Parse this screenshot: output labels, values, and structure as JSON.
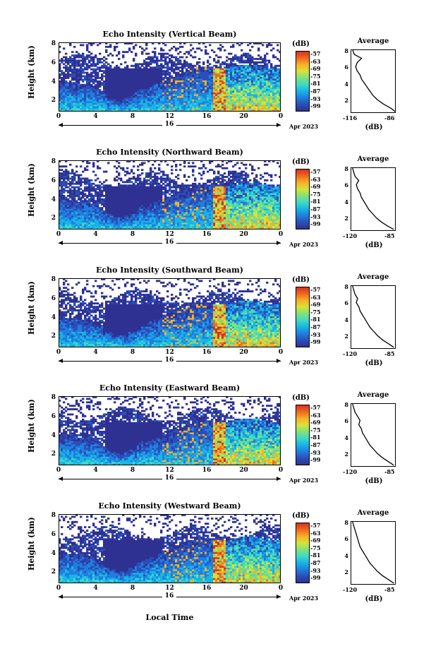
{
  "colorbar": {
    "unit": "(dB)",
    "ticks": [
      "-57",
      "-63",
      "-69",
      "-75",
      "-81",
      "-87",
      "-93",
      "-99"
    ],
    "colors": [
      "#2e3192",
      "#2b4fb8",
      "#1f7fe0",
      "#18b4e6",
      "#3fd9c6",
      "#7fe27a",
      "#d6e33a",
      "#f7b126",
      "#f16a1f",
      "#d7301f"
    ]
  },
  "shared": {
    "x_ticks": [
      "0",
      "4",
      "8",
      "12",
      "16",
      "20",
      "0"
    ],
    "y_ticks": [
      "2",
      "4",
      "6",
      "8"
    ],
    "day_label": "16",
    "date_label": "Apr 2023",
    "xlabel": "Local Time",
    "ylabel": "Height (km)",
    "avg_title": "Average",
    "avg_unit": "(dB)",
    "avg_y_ticks": [
      "2",
      "4",
      "6",
      "8"
    ]
  },
  "panels": [
    {
      "title": "Echo Intensity (Vertical Beam)",
      "avg_xmin": "-116",
      "avg_xmax": "-86"
    },
    {
      "title": "Echo Intensity (Northward Beam)",
      "avg_xmin": "-120",
      "avg_xmax": "-85"
    },
    {
      "title": "Echo Intensity (Southward Beam)",
      "avg_xmin": "-120",
      "avg_xmax": "-85"
    },
    {
      "title": "Echo Intensity (Eastward Beam)",
      "avg_xmin": "-120",
      "avg_xmax": "-85"
    },
    {
      "title": "Echo Intensity (Westward Beam)",
      "avg_xmin": "-120",
      "avg_xmax": "-85"
    }
  ],
  "chart_data": [
    {
      "type": "heatmap",
      "title": "Echo Intensity (Vertical Beam)",
      "xlabel": "",
      "ylabel": "Height (km)",
      "xlim": [
        0,
        24
      ],
      "ylim": [
        0.5,
        8
      ],
      "colorbar_range": [
        -99,
        -57
      ],
      "profile": {
        "title": "Average",
        "xlabel": "(dB)",
        "xlim": [
          -116,
          -86
        ],
        "ylim": [
          0.5,
          8
        ],
        "height": [
          0.6,
          1,
          1.5,
          2,
          2.5,
          3,
          3.5,
          4,
          4.5,
          5,
          5.5,
          6,
          6.5,
          7,
          7.5,
          8
        ],
        "value": [
          -86,
          -89,
          -94,
          -98,
          -101,
          -103,
          -105,
          -107,
          -109,
          -110,
          -112,
          -113,
          -112,
          -109,
          -114,
          -115
        ]
      }
    },
    {
      "type": "heatmap",
      "title": "Echo Intensity (Northward Beam)",
      "xlabel": "",
      "ylabel": "Height (km)",
      "xlim": [
        0,
        24
      ],
      "ylim": [
        0.5,
        8
      ],
      "colorbar_range": [
        -99,
        -57
      ],
      "profile": {
        "title": "Average",
        "xlabel": "(dB)",
        "xlim": [
          -120,
          -85
        ],
        "ylim": [
          0.5,
          8
        ],
        "height": [
          0.6,
          1,
          1.5,
          2,
          2.5,
          3,
          3.5,
          4,
          4.5,
          5,
          5.5,
          6,
          6.5,
          7,
          7.5,
          8
        ],
        "value": [
          -86,
          -91,
          -96,
          -100,
          -103,
          -106,
          -108,
          -110,
          -112,
          -113,
          -115,
          -116,
          -114,
          -117,
          -118,
          -119
        ]
      }
    },
    {
      "type": "heatmap",
      "title": "Echo Intensity (Southward Beam)",
      "xlabel": "",
      "ylabel": "Height (km)",
      "xlim": [
        0,
        24
      ],
      "ylim": [
        0.5,
        8
      ],
      "colorbar_range": [
        -99,
        -57
      ],
      "profile": {
        "title": "Average",
        "xlabel": "(dB)",
        "xlim": [
          -120,
          -85
        ],
        "ylim": [
          0.5,
          8
        ],
        "height": [
          0.6,
          1,
          1.5,
          2,
          2.5,
          3,
          3.5,
          4,
          4.5,
          5,
          5.5,
          6,
          6.5,
          7,
          7.5,
          8
        ],
        "value": [
          -86,
          -90,
          -95,
          -99,
          -102,
          -105,
          -107,
          -109,
          -111,
          -113,
          -114,
          -116,
          -115,
          -117,
          -118,
          -119
        ]
      }
    },
    {
      "type": "heatmap",
      "title": "Echo Intensity (Eastward Beam)",
      "xlabel": "",
      "ylabel": "Height (km)",
      "xlim": [
        0,
        24
      ],
      "ylim": [
        0.5,
        8
      ],
      "colorbar_range": [
        -99,
        -57
      ],
      "profile": {
        "title": "Average",
        "xlabel": "(dB)",
        "xlim": [
          -120,
          -85
        ],
        "ylim": [
          0.5,
          8
        ],
        "height": [
          0.6,
          1,
          1.5,
          2,
          2.5,
          3,
          3.5,
          4,
          4.5,
          5,
          5.5,
          6,
          6.5,
          7,
          7.5,
          8
        ],
        "value": [
          -86,
          -90,
          -95,
          -99,
          -102,
          -105,
          -107,
          -109,
          -111,
          -112,
          -114,
          -113,
          -115,
          -117,
          -118,
          -119
        ]
      }
    },
    {
      "type": "heatmap",
      "title": "Echo Intensity (Westward Beam)",
      "xlabel": "Local Time",
      "ylabel": "Height (km)",
      "xlim": [
        0,
        24
      ],
      "ylim": [
        0.5,
        8
      ],
      "colorbar_range": [
        -99,
        -57
      ],
      "profile": {
        "title": "Average",
        "xlabel": "(dB)",
        "xlim": [
          -120,
          -85
        ],
        "ylim": [
          0.5,
          8
        ],
        "height": [
          0.6,
          1,
          1.5,
          2,
          2.5,
          3,
          3.5,
          4,
          4.5,
          5,
          5.5,
          6,
          6.5,
          7,
          7.5,
          8
        ],
        "value": [
          -86,
          -90,
          -95,
          -99,
          -102,
          -105,
          -107,
          -109,
          -111,
          -113,
          -114,
          -115,
          -116,
          -117,
          -118,
          -119
        ]
      }
    }
  ]
}
